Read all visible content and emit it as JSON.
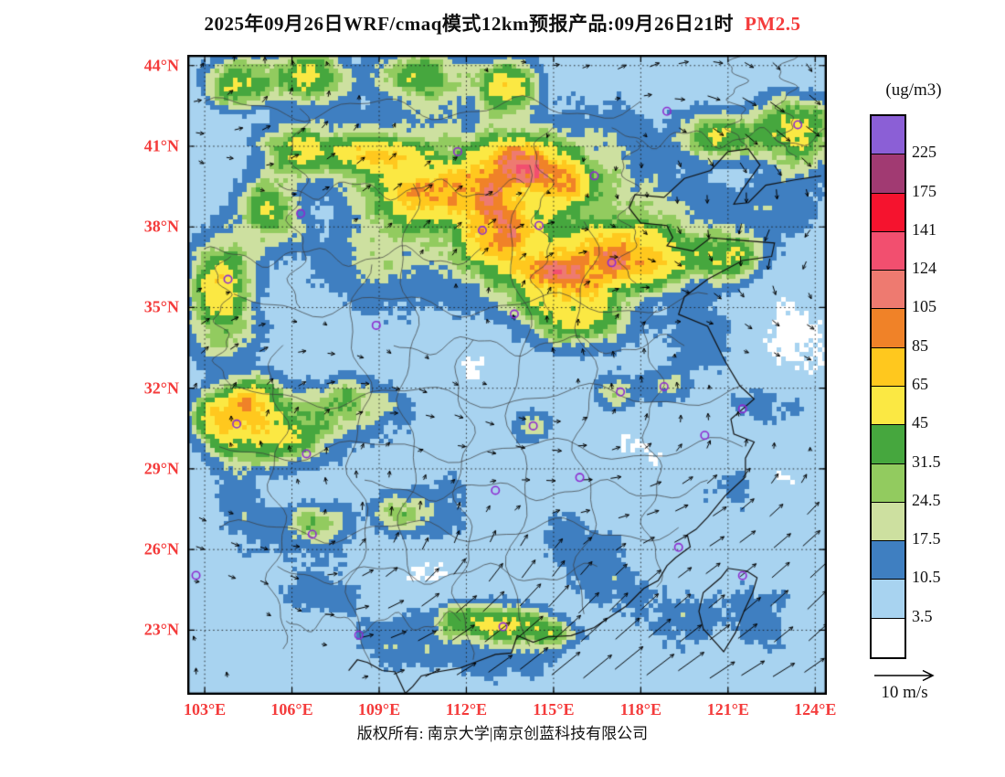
{
  "title": {
    "text": "2025年09月26日WRF/cmaq模式12km预报产品:09月26日21时",
    "pollutant": "PM2.5",
    "pollutant_color": "#f43b3b"
  },
  "colorbar": {
    "unit": "(ug/m3)",
    "labels_top_to_bottom": [
      "225",
      "175",
      "141",
      "124",
      "105",
      "85",
      "65",
      "45",
      "31.5",
      "24.5",
      "17.5",
      "10.5",
      "3.5"
    ],
    "boundaries_ascending": [
      3.5,
      10.5,
      17.5,
      24.5,
      31.5,
      45,
      65,
      85,
      105,
      124,
      141,
      175,
      225
    ],
    "colors_top_to_bottom": [
      "#8B5FD6",
      "#A13A72",
      "#F5132E",
      "#F24F6F",
      "#EE7A70",
      "#F08228",
      "#FFC81E",
      "#FBE843",
      "#46A73E",
      "#92CB5F",
      "#CDE0A0",
      "#3F7FC1",
      "#A8D3F0",
      "#FFFFFF"
    ]
  },
  "axes": {
    "x_tick_labels": [
      "103°E",
      "106°E",
      "109°E",
      "112°E",
      "115°E",
      "118°E",
      "121°E",
      "124°E"
    ],
    "x_tick_lons": [
      103,
      106,
      109,
      112,
      115,
      118,
      121,
      124
    ],
    "y_tick_labels": [
      "44°N",
      "41°N",
      "38°N",
      "35°N",
      "32°N",
      "29°N",
      "26°N",
      "23°N"
    ],
    "y_tick_lats": [
      44,
      41,
      38,
      35,
      32,
      29,
      26,
      23
    ],
    "lon_range": [
      102.4,
      124.4
    ],
    "lat_range": [
      20.6,
      44.4
    ],
    "tick_label_color": "#f43b3b"
  },
  "wind_legend": {
    "label": "10 m/s"
  },
  "footer": {
    "text": "版权所有: 南京大学|南京创蓝科技有限公司"
  },
  "stations": {
    "marker_color": "#8E2BD0",
    "points": [
      [
        116.4,
        39.9
      ],
      [
        114.5,
        38.05
      ],
      [
        112.55,
        37.87
      ],
      [
        111.7,
        40.8
      ],
      [
        118.9,
        42.3
      ],
      [
        123.4,
        41.8
      ],
      [
        117.0,
        36.67
      ],
      [
        113.65,
        34.76
      ],
      [
        108.9,
        34.34
      ],
      [
        106.3,
        38.5
      ],
      [
        103.8,
        36.05
      ],
      [
        104.1,
        30.67
      ],
      [
        106.5,
        29.56
      ],
      [
        106.7,
        26.57
      ],
      [
        102.7,
        25.04
      ],
      [
        108.3,
        22.82
      ],
      [
        113.26,
        23.13
      ],
      [
        113.0,
        28.2
      ],
      [
        114.3,
        30.6
      ],
      [
        115.9,
        28.68
      ],
      [
        117.3,
        31.86
      ],
      [
        118.8,
        32.06
      ],
      [
        121.5,
        31.23
      ],
      [
        120.2,
        30.25
      ],
      [
        119.3,
        26.08
      ],
      [
        121.5,
        25.03
      ]
    ]
  },
  "map_render": {
    "base": 6,
    "blobs": [
      [
        113.5,
        38.8,
        28,
        4.8,
        3.2
      ],
      [
        113.8,
        40.4,
        70,
        1.3,
        0.9
      ],
      [
        115.3,
        39.7,
        55,
        1.0,
        0.8
      ],
      [
        112.4,
        39.2,
        50,
        1.2,
        0.9
      ],
      [
        113.2,
        37.8,
        65,
        1.0,
        1.1
      ],
      [
        116.5,
        36.7,
        70,
        1.5,
        1.0
      ],
      [
        114.8,
        36.2,
        55,
        1.2,
        0.8
      ],
      [
        118.2,
        36.9,
        55,
        1.2,
        0.9
      ],
      [
        115.8,
        34.8,
        45,
        1.5,
        1.0
      ],
      [
        110.3,
        39.3,
        50,
        1.3,
        1.0
      ],
      [
        108.8,
        40.7,
        45,
        1.5,
        0.8
      ],
      [
        106.3,
        40.9,
        40,
        1.2,
        0.8
      ],
      [
        105.2,
        38.6,
        35,
        1.0,
        1.2
      ],
      [
        103.6,
        36.2,
        38,
        0.9,
        1.3
      ],
      [
        104.2,
        43.3,
        45,
        1.0,
        0.8
      ],
      [
        106.5,
        43.6,
        40,
        1.2,
        0.9
      ],
      [
        113.4,
        43.2,
        55,
        0.8,
        0.8
      ],
      [
        110.5,
        43.6,
        30,
        1.5,
        0.9
      ],
      [
        123.3,
        41.7,
        45,
        1.2,
        1.0
      ],
      [
        120.8,
        41.3,
        35,
        1.2,
        0.8
      ],
      [
        120.8,
        36.9,
        40,
        1.3,
        0.8
      ],
      [
        103.5,
        34.9,
        22,
        1.0,
        1.5
      ],
      [
        104.7,
        31.5,
        60,
        0.9,
        0.8
      ],
      [
        103.3,
        30.9,
        40,
        0.7,
        0.9
      ],
      [
        105.8,
        30.3,
        40,
        1.5,
        1.0
      ],
      [
        104.0,
        30.3,
        30,
        0.8,
        1.2
      ],
      [
        107.8,
        31.6,
        22,
        1.2,
        0.8
      ],
      [
        106.8,
        26.9,
        24,
        1.0,
        0.8
      ],
      [
        109.6,
        27.3,
        18,
        0.9,
        0.7
      ],
      [
        113.4,
        23.2,
        45,
        1.1,
        0.6
      ],
      [
        111.9,
        23.4,
        28,
        1.0,
        0.6
      ],
      [
        114.9,
        22.9,
        26,
        0.8,
        0.5
      ],
      [
        114.3,
        30.6,
        18,
        0.7,
        0.5
      ],
      [
        117.2,
        31.8,
        15,
        0.8,
        0.6
      ],
      [
        118.8,
        32.1,
        14,
        0.8,
        0.5
      ],
      [
        104.5,
        27.5,
        9,
        1.0,
        1.5
      ],
      [
        107.0,
        24.5,
        8,
        1.5,
        1.2
      ],
      [
        110.0,
        22.5,
        9,
        2.0,
        1.0
      ],
      [
        113.5,
        21.8,
        8,
        2.0,
        0.8
      ],
      [
        117.0,
        25.0,
        8,
        1.2,
        1.5
      ],
      [
        119.5,
        23.5,
        8,
        1.5,
        1.2
      ],
      [
        122.5,
        31.3,
        8,
        1.5,
        1.0
      ],
      [
        120.2,
        34.0,
        8,
        1.5,
        1.5
      ],
      [
        122.8,
        38.8,
        9,
        1.5,
        1.2
      ],
      [
        119.0,
        38.6,
        8,
        1.5,
        1.0
      ],
      [
        123.5,
        40.6,
        8,
        1.0,
        1.0
      ],
      [
        109.2,
        31.0,
        7,
        1.5,
        1.0
      ],
      [
        111.2,
        27.6,
        7,
        1.5,
        1.5
      ],
      [
        115.2,
        26.6,
        7,
        1.2,
        1.5
      ],
      [
        104.0,
        34.0,
        8,
        1.5,
        1.2
      ],
      [
        108.6,
        36.4,
        7,
        1.5,
        1.5
      ],
      [
        121.2,
        28.2,
        7,
        1.2,
        1.5
      ],
      [
        122.3,
        23.6,
        7,
        1.0,
        1.5
      ],
      [
        123.0,
        33.5,
        -3.5,
        2.0,
        3.0
      ],
      [
        122.5,
        28.6,
        -3.0,
        1.5,
        2.0
      ],
      [
        112.0,
        33.2,
        -3.5,
        2.5,
        1.5
      ],
      [
        117.6,
        29.8,
        -2.5,
        1.8,
        1.2
      ],
      [
        114.5,
        27.2,
        -2.5,
        1.5,
        1.5
      ],
      [
        110.5,
        25.5,
        -2.5,
        1.8,
        1.2
      ],
      [
        114.0,
        42.3,
        -3.0,
        2.0,
        1.2
      ],
      [
        119.8,
        40.3,
        -2.0,
        1.2,
        0.8
      ],
      [
        106.0,
        33.3,
        -2.5,
        1.5,
        1.0
      ]
    ],
    "coastlines": [
      [
        [
          124.2,
          39.9
        ],
        [
          123.3,
          39.75
        ],
        [
          122.3,
          39.55
        ],
        [
          121.7,
          38.9
        ],
        [
          121.2,
          38.85
        ],
        [
          121.5,
          39.4
        ],
        [
          122.1,
          40.3
        ],
        [
          121.7,
          40.9
        ],
        [
          121.0,
          40.8
        ],
        [
          120.4,
          40.1
        ],
        [
          119.5,
          39.8
        ],
        [
          118.8,
          39.1
        ],
        [
          117.8,
          39.2
        ],
        [
          117.6,
          38.7
        ],
        [
          118.0,
          38.15
        ],
        [
          118.9,
          38.05
        ],
        [
          119.1,
          37.6
        ],
        [
          118.9,
          37.3
        ],
        [
          119.8,
          37.1
        ],
        [
          120.4,
          37.6
        ],
        [
          121.4,
          37.5
        ],
        [
          122.6,
          37.4
        ],
        [
          122.5,
          36.9
        ],
        [
          121.5,
          36.75
        ],
        [
          120.3,
          36.05
        ],
        [
          119.5,
          35.4
        ],
        [
          119.3,
          34.75
        ],
        [
          120.3,
          34.3
        ],
        [
          120.9,
          33.0
        ],
        [
          121.4,
          32.1
        ],
        [
          121.9,
          31.6
        ],
        [
          121.1,
          30.85
        ],
        [
          121.2,
          30.3
        ],
        [
          121.9,
          30.0
        ],
        [
          121.6,
          29.4
        ],
        [
          121.6,
          28.7
        ],
        [
          120.9,
          28.0
        ],
        [
          120.3,
          27.2
        ],
        [
          119.9,
          26.75
        ],
        [
          119.6,
          26.55
        ],
        [
          119.7,
          26.1
        ],
        [
          119.2,
          25.7
        ],
        [
          118.9,
          25.4
        ],
        [
          118.6,
          24.85
        ],
        [
          118.1,
          24.55
        ],
        [
          117.5,
          23.9
        ],
        [
          116.8,
          23.4
        ],
        [
          116.4,
          23.1
        ],
        [
          115.6,
          22.8
        ],
        [
          114.8,
          22.75
        ],
        [
          114.3,
          22.55
        ],
        [
          113.75,
          22.8
        ],
        [
          113.55,
          22.15
        ],
        [
          113.0,
          22.1
        ],
        [
          112.4,
          21.85
        ],
        [
          111.8,
          21.6
        ],
        [
          111.0,
          21.45
        ],
        [
          110.45,
          21.3
        ],
        [
          110.15,
          20.9
        ],
        [
          109.9,
          20.65
        ],
        [
          109.75,
          21.0
        ],
        [
          109.55,
          21.45
        ],
        [
          109.1,
          21.5
        ],
        [
          108.6,
          21.8
        ],
        [
          108.25,
          21.9
        ],
        [
          107.95,
          21.5
        ]
      ],
      [
        [
          121.0,
          25.3
        ],
        [
          121.65,
          25.2
        ],
        [
          122.0,
          24.95
        ],
        [
          121.85,
          24.4
        ],
        [
          121.55,
          23.7
        ],
        [
          121.25,
          22.9
        ],
        [
          120.85,
          22.2
        ],
        [
          120.65,
          22.45
        ],
        [
          120.15,
          23.05
        ],
        [
          120.0,
          23.7
        ],
        [
          120.15,
          24.4
        ],
        [
          120.75,
          24.95
        ],
        [
          121.0,
          25.3
        ]
      ]
    ],
    "province_lines": [
      [
        "h",
        42.4,
        103,
        118,
        0.35,
        0.5
      ],
      [
        "h",
        41.3,
        117,
        124.4,
        0.3,
        1.2
      ],
      [
        "h",
        39.4,
        105.5,
        114,
        0.3,
        2.1
      ],
      [
        "h",
        36.9,
        103,
        112.5,
        0.3,
        0.7
      ],
      [
        "h",
        35.1,
        104,
        120.3,
        0.35,
        1.6
      ],
      [
        "h",
        33.6,
        109.5,
        119.5,
        0.3,
        2.8
      ],
      [
        "h",
        31.7,
        103.5,
        121.5,
        0.35,
        0.9
      ],
      [
        "h",
        29.7,
        103.5,
        121.5,
        0.35,
        2.4
      ],
      [
        "h",
        28.2,
        108.5,
        120.3,
        0.3,
        1.1
      ],
      [
        "h",
        26.7,
        103.5,
        119.3,
        0.35,
        0.2
      ],
      [
        "h",
        25.1,
        105.5,
        116.5,
        0.3,
        1.9
      ],
      [
        "h",
        23.3,
        105.8,
        111.8,
        0.3,
        2.6
      ],
      [
        "v",
        105.5,
        22.3,
        33.6,
        0.3,
        0.4
      ],
      [
        "v",
        108.3,
        21.6,
        36.6,
        0.35,
        1.3
      ],
      [
        "v",
        110.0,
        24.8,
        39.6,
        0.3,
        2.2
      ],
      [
        "v",
        111.9,
        21.9,
        33.8,
        0.3,
        0.8
      ],
      [
        "v",
        113.8,
        22.4,
        40.3,
        0.35,
        1.7
      ],
      [
        "v",
        116.1,
        23.6,
        38.2,
        0.35,
        2.9
      ],
      [
        "v",
        118.4,
        24.6,
        34.9,
        0.3,
        0.3
      ],
      [
        "v",
        114.6,
        34.6,
        41.7,
        0.3,
        1.0
      ],
      [
        "v",
        117.6,
        35.9,
        41.2,
        0.3,
        2.0
      ],
      [
        "v",
        121.3,
        40.9,
        44.4,
        0.3,
        0.6
      ],
      [
        "v",
        123.0,
        40.6,
        44.4,
        0.3,
        1.5
      ],
      [
        "v",
        106.2,
        35.0,
        42.4,
        0.3,
        2.5
      ],
      [
        "v",
        103.6,
        32.0,
        36.9,
        0.25,
        0.9
      ]
    ]
  }
}
